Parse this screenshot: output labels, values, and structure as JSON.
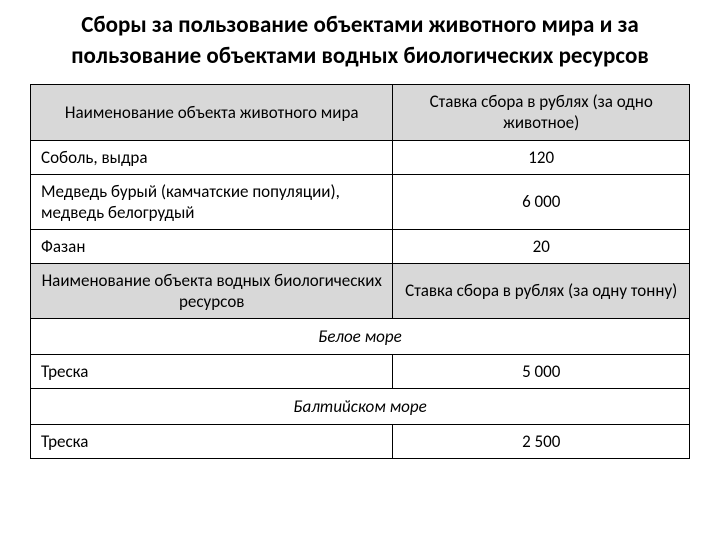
{
  "title": "Сборы за пользование объектами животного мира и за пользование объектами водных биологических ресурсов",
  "table": {
    "header1": {
      "col1": "Наименование объекта животного мира",
      "col2": "Ставка сбора в рублях (за одно животное)"
    },
    "rows1": [
      {
        "name": "Соболь, выдра",
        "value": "120"
      },
      {
        "name": "Медведь бурый (камчатские популяции), медведь белогрудый",
        "value": "6 000"
      },
      {
        "name": "Фазан",
        "value": "20"
      }
    ],
    "header2": {
      "col1": "Наименование объекта водных биологических ресурсов",
      "col2": "Ставка сбора в рублях (за одну тонну)"
    },
    "section1": {
      "title": "Белое море",
      "rows": [
        {
          "name": "Треска",
          "value": "5 000"
        }
      ]
    },
    "section2": {
      "title": "Балтийском море",
      "rows": [
        {
          "name": "Треска",
          "value": "2 500"
        }
      ]
    }
  }
}
